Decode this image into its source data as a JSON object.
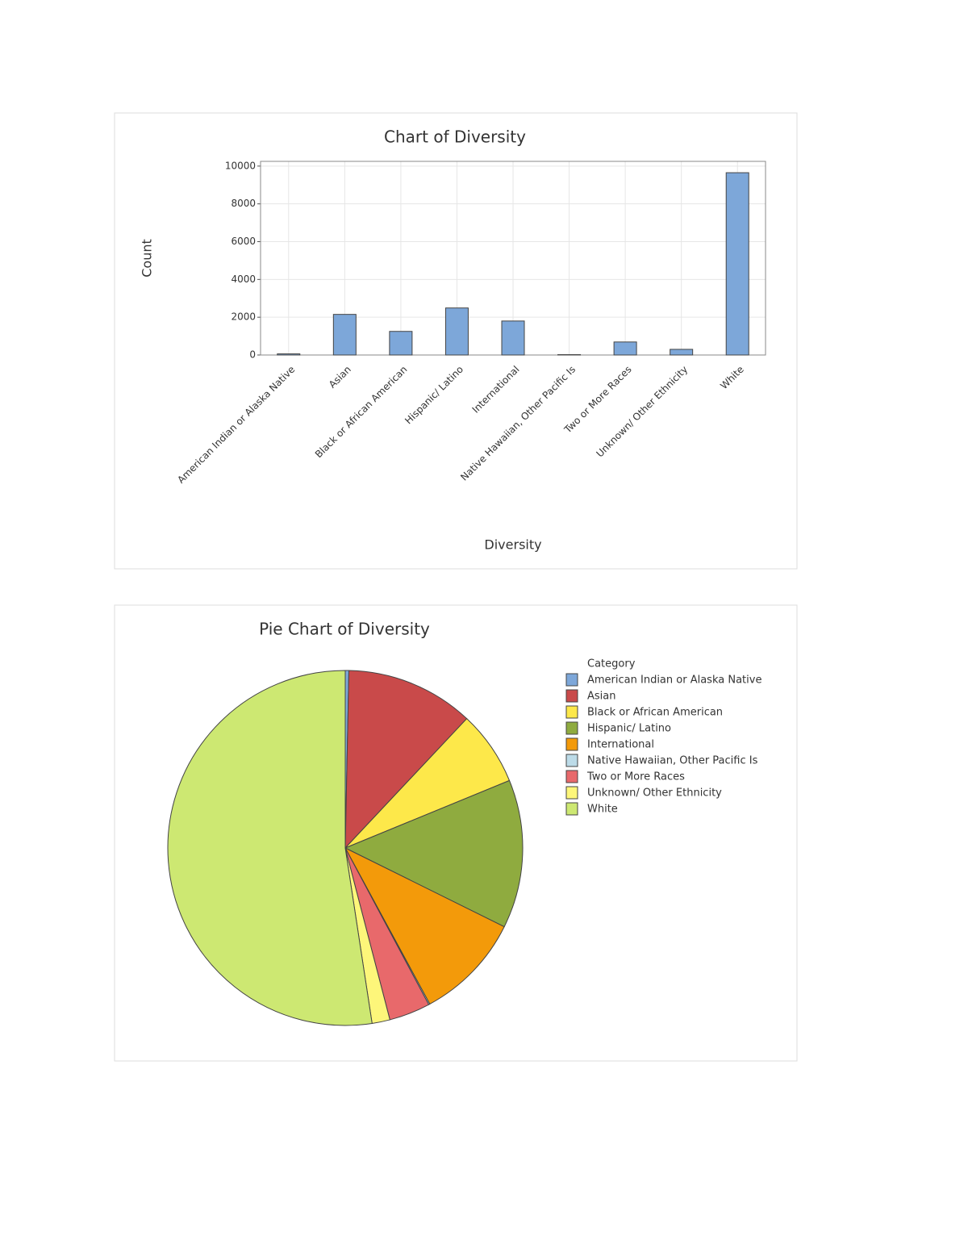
{
  "chart_data": [
    {
      "type": "bar",
      "title": "Chart of Diversity",
      "xlabel": "Diversity",
      "ylabel": "Count",
      "categories": [
        "American Indian or Alaska Native",
        "Asian",
        "Black or African American",
        "Hispanic/ Latino",
        "International",
        "Native Hawaiian, Other Pacific Is",
        "Two or More Races",
        "Unknown/ Other Ethnicity",
        "White"
      ],
      "values": [
        60,
        2150,
        1250,
        2490,
        1800,
        20,
        690,
        300,
        9650
      ],
      "color": "#7da7d9",
      "ylim": [
        0,
        10250
      ],
      "yticks": [
        0,
        2000,
        4000,
        6000,
        8000,
        10000
      ],
      "grid": true
    },
    {
      "type": "pie",
      "title": "Pie Chart of Diversity",
      "legend_title": "Category",
      "categories": [
        "American Indian or Alaska Native",
        "Asian",
        "Black or African American",
        "Hispanic/ Latino",
        "International",
        "Native Hawaiian, Other Pacific Is",
        "Two or More Races",
        "Unknown/ Other Ethnicity",
        "White"
      ],
      "values": [
        60,
        2150,
        1250,
        2490,
        1800,
        20,
        690,
        300,
        9650
      ],
      "colors": [
        "#7da7d9",
        "#c94a4a",
        "#fde84a",
        "#8fab3f",
        "#f39a0a",
        "#bcdbe8",
        "#e8696b",
        "#fdf67a",
        "#cde872"
      ],
      "legend": "right"
    }
  ]
}
